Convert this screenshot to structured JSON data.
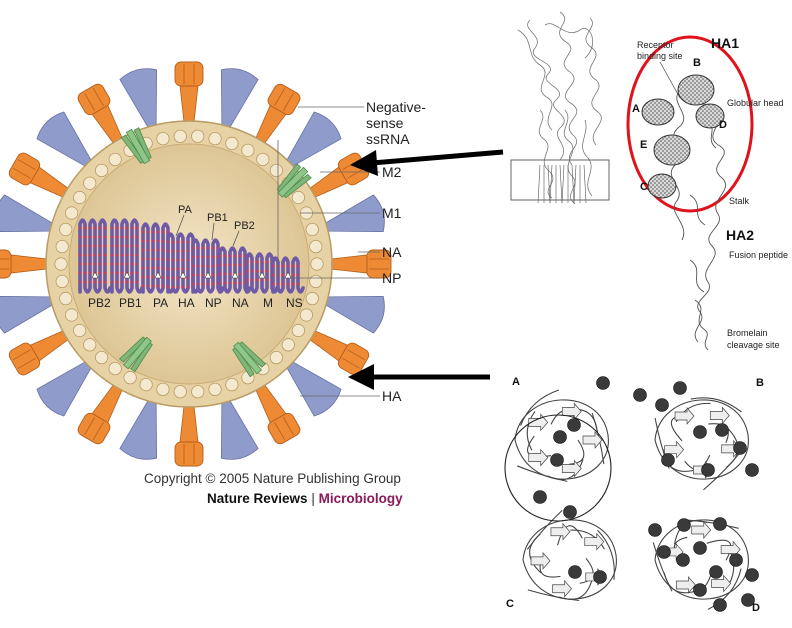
{
  "virion": {
    "side_labels": {
      "rna": "Negative-\nsense\nssRNA",
      "m2": "M2",
      "m1": "M1",
      "na": "NA",
      "np": "NP",
      "ha": "HA"
    },
    "polymerase_labels": [
      "PA",
      "PB1",
      "PB2"
    ],
    "segment_labels": [
      "PB2",
      "PB1",
      "PA",
      "HA",
      "NP",
      "NA",
      "M",
      "NS"
    ]
  },
  "credits": {
    "copyright": "Copyright © 2005 Nature Publishing Group",
    "journal": "Nature Reviews",
    "separator": "|",
    "subjournal": "Microbiology"
  },
  "ha_structure": {
    "title_ha1": "HA1",
    "title_ha2": "HA2",
    "annotations": {
      "receptor": "Receptor\nbinding site",
      "globular": "Globular head",
      "stalk": "Stalk",
      "fusion": "Fusion peptide",
      "bromelain": "Bromelain\ncleavage site"
    },
    "sites": [
      "A",
      "B",
      "C",
      "D",
      "E"
    ]
  },
  "na_structure": {
    "quadrant_labels": [
      "A",
      "B",
      "C",
      "D"
    ],
    "residues_visible": [
      "199",
      "221",
      "402",
      "436",
      "368",
      "365",
      "345",
      "329"
    ]
  },
  "colors": {
    "envelope": "#e8d3a8",
    "ha": "#ee8a34",
    "na": "#8f9ccb",
    "m2": "#7fb67a",
    "rna": "#6e5aa6",
    "ha1_circle": "#e0121b",
    "arrow": "#000000",
    "subjournal": "#8a1a5a"
  }
}
